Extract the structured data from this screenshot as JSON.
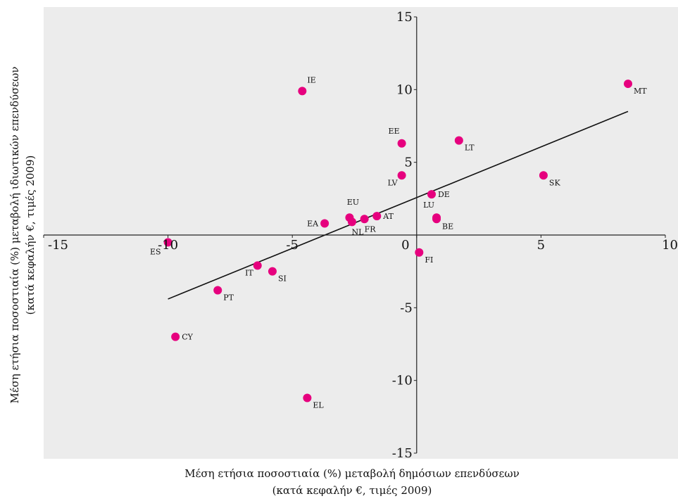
{
  "chart_data": {
    "type": "scatter",
    "title": "",
    "xlabel": "Μέση ετήσια ποσοστιαία (%) μεταβολή δημόσιων επενδύσεων",
    "xlabel_sub": "(κατά κεφαλήν €, τιμές 2009)",
    "ylabel": "Μέση ετήσια ποσοστιαία (%) μεταβολή ιδιωτικών επενδύσεων",
    "ylabel_sub": "(κατά κεφαλήν €, τιμές 2009)",
    "xlim": [
      -15,
      10
    ],
    "ylim": [
      -15,
      15
    ],
    "x_ticks": [
      -15,
      -10,
      -5,
      0,
      5,
      10
    ],
    "y_ticks": [
      -15,
      -10,
      -5,
      0,
      5,
      10,
      15
    ],
    "x_tick_labels": [
      "-15",
      "-10",
      "-5",
      "0",
      "5",
      "10"
    ],
    "y_tick_labels": [
      "-15",
      "-10",
      "-5",
      "0",
      "5",
      "10",
      "15"
    ],
    "grid": false,
    "background_color": "#ececec",
    "marker_color": "#e6007e",
    "trendline": {
      "x": [
        -10.0,
        8.5
      ],
      "y": [
        -4.4,
        8.5
      ]
    },
    "points": [
      {
        "label": "ES",
        "x": -10.0,
        "y": -0.5,
        "label_pos": "bottom-left"
      },
      {
        "label": "CY",
        "x": -9.7,
        "y": -7.0,
        "label_pos": "right"
      },
      {
        "label": "PT",
        "x": -8.0,
        "y": -3.8,
        "label_pos": "right-below"
      },
      {
        "label": "IT",
        "x": -6.4,
        "y": -2.1,
        "label_pos": "left-below"
      },
      {
        "label": "SI",
        "x": -5.8,
        "y": -2.5,
        "label_pos": "right-below"
      },
      {
        "label": "IE",
        "x": -4.6,
        "y": 9.9,
        "label_pos": "above-right"
      },
      {
        "label": "EL",
        "x": -4.4,
        "y": -11.2,
        "label_pos": "right-below"
      },
      {
        "label": "EA",
        "x": -3.7,
        "y": 0.8,
        "label_pos": "left"
      },
      {
        "label": "EU",
        "x": -2.7,
        "y": 1.2,
        "label_pos": "above"
      },
      {
        "label": "NL",
        "x": -2.6,
        "y": 0.9,
        "label_pos": "below"
      },
      {
        "label": "FR",
        "x": -2.1,
        "y": 1.1,
        "label_pos": "below"
      },
      {
        "label": "AT",
        "x": -1.6,
        "y": 1.3,
        "label_pos": "right"
      },
      {
        "label": "EE",
        "x": -0.6,
        "y": 6.3,
        "label_pos": "above-left"
      },
      {
        "label": "LV",
        "x": -0.6,
        "y": 4.1,
        "label_pos": "left-below"
      },
      {
        "label": "FI",
        "x": 0.1,
        "y": -1.2,
        "label_pos": "right-below"
      },
      {
        "label": "DE",
        "x": 0.6,
        "y": 2.8,
        "label_pos": "right"
      },
      {
        "label": "LU",
        "x": 0.8,
        "y": 1.2,
        "label_pos": "above-left"
      },
      {
        "label": "BE",
        "x": 0.8,
        "y": 1.1,
        "label_pos": "right-below"
      },
      {
        "label": "LT",
        "x": 1.7,
        "y": 6.5,
        "label_pos": "right-below"
      },
      {
        "label": "SK",
        "x": 5.1,
        "y": 4.1,
        "label_pos": "right-below"
      },
      {
        "label": "MT",
        "x": 8.5,
        "y": 10.4,
        "label_pos": "right-below"
      }
    ]
  }
}
